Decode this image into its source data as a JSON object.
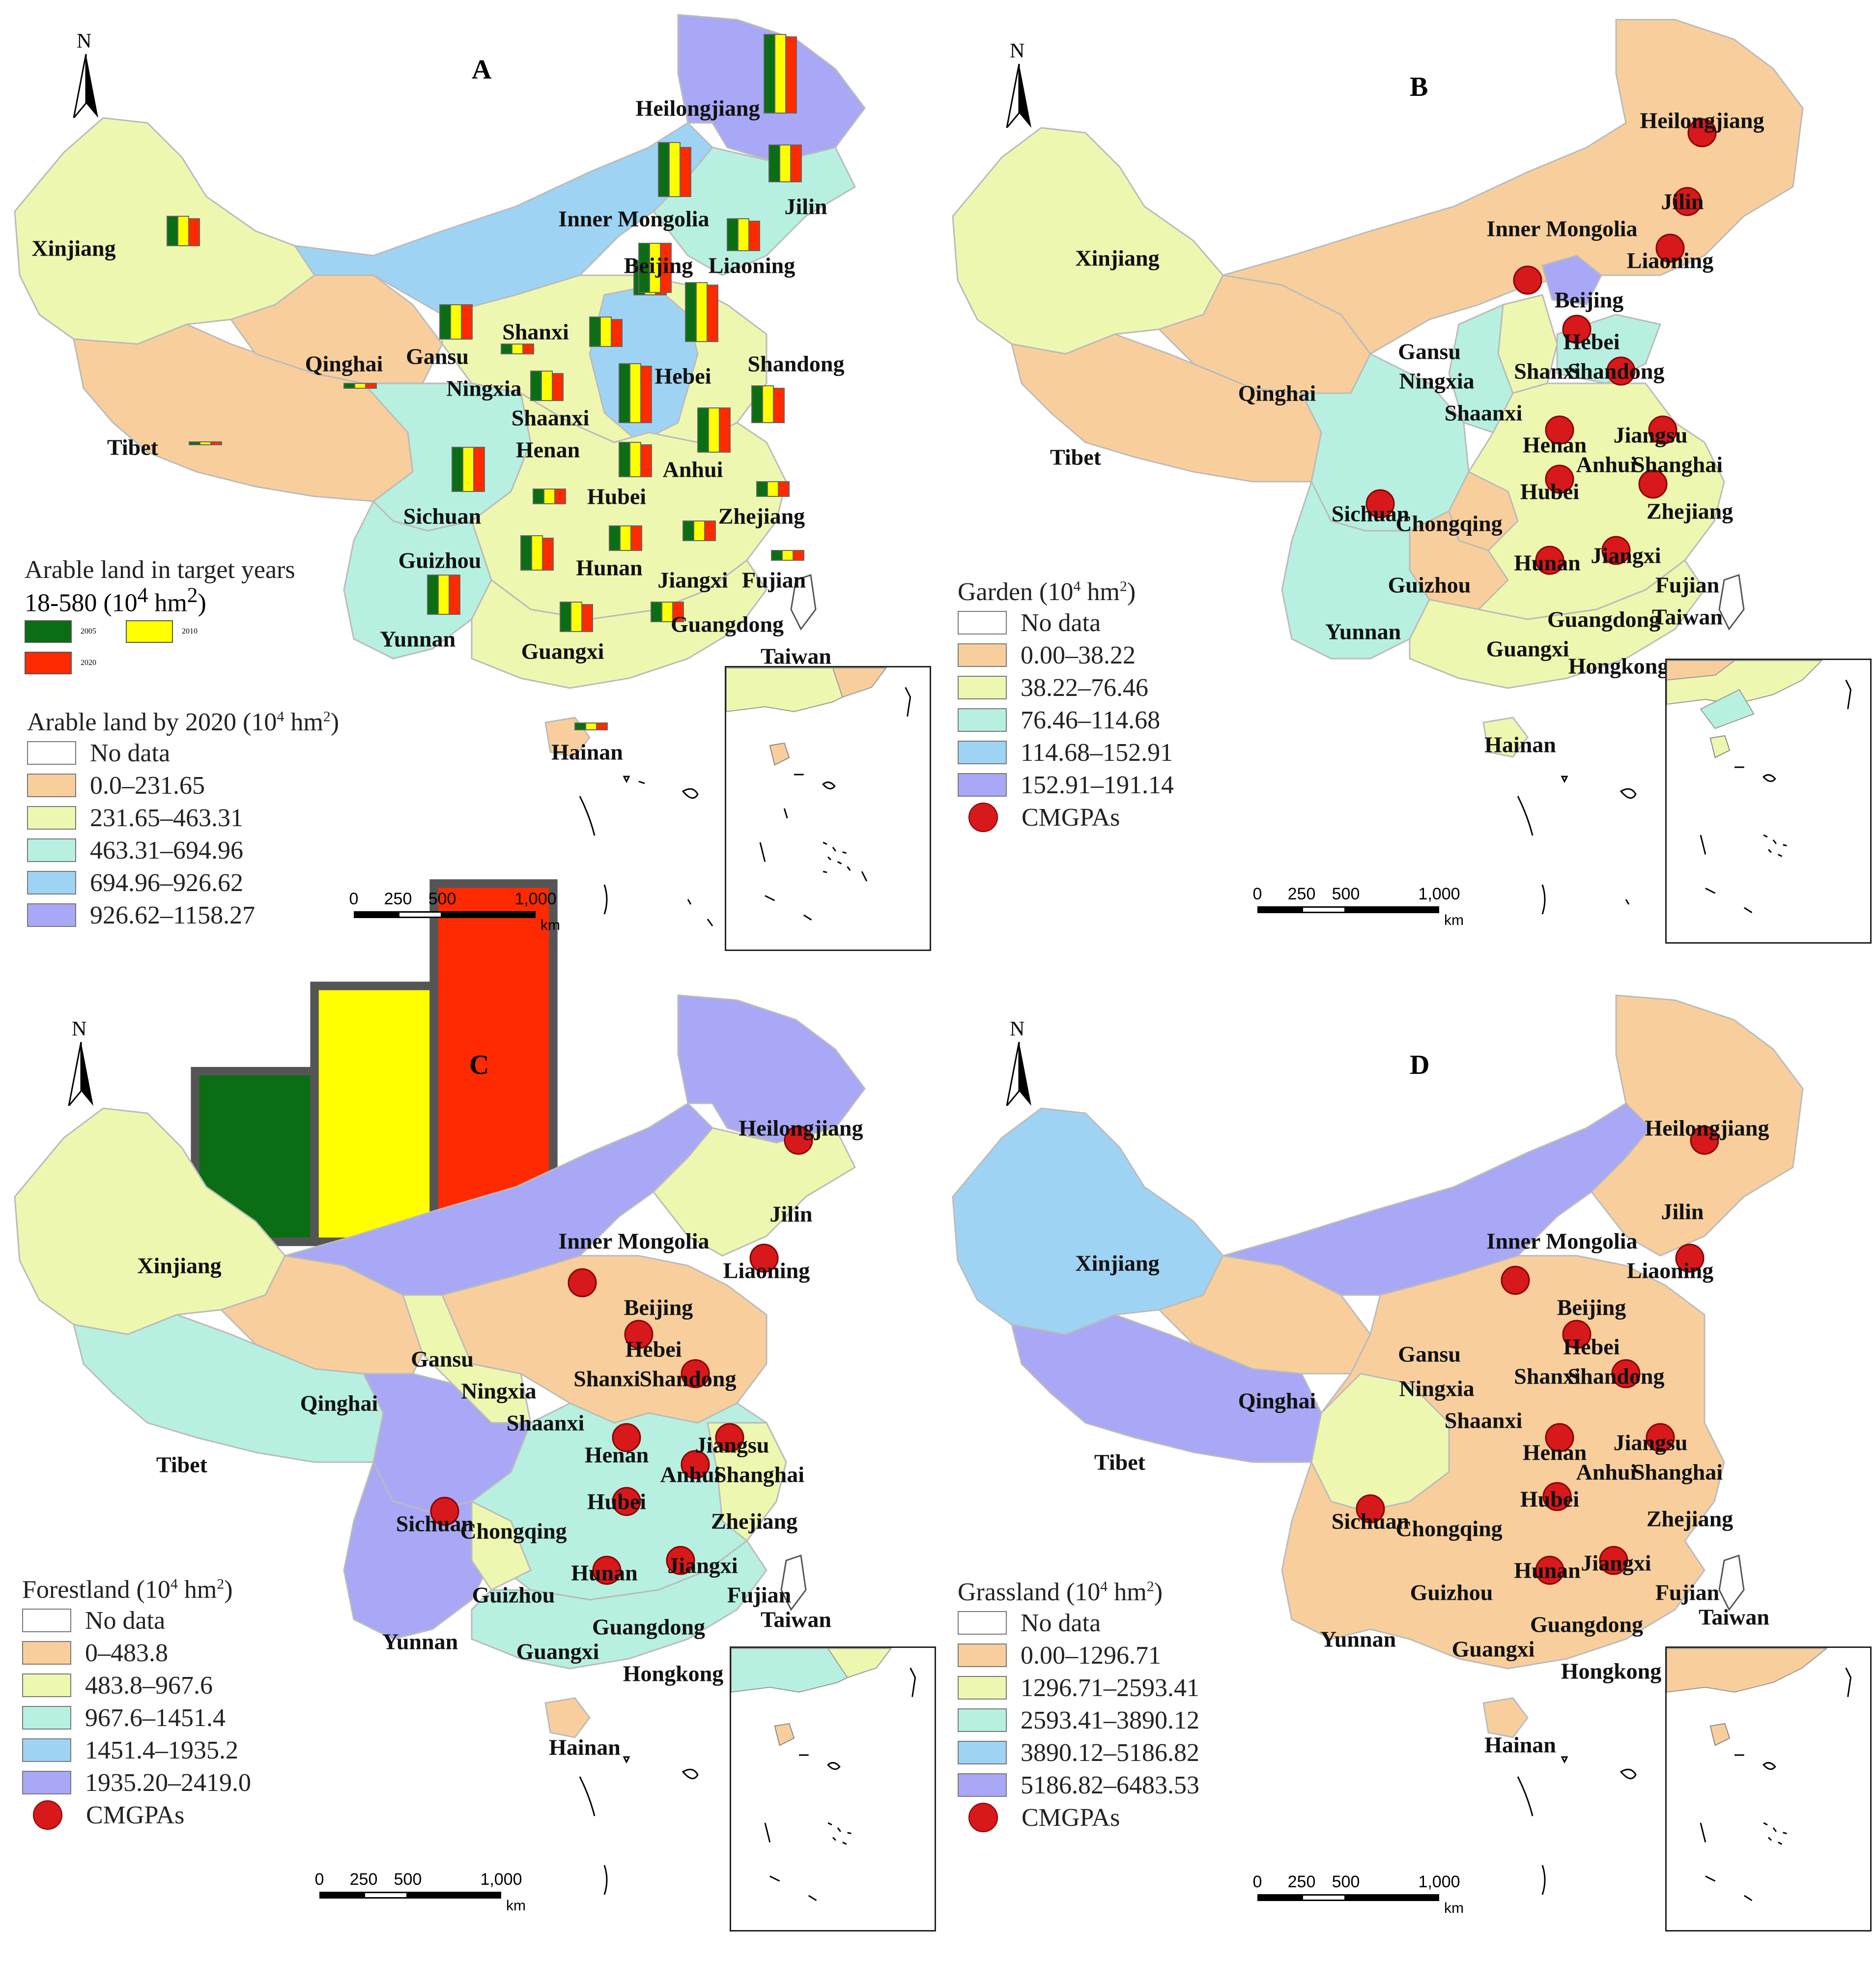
{
  "panels": [
    {
      "letter": "A",
      "north": "N",
      "legend_title": "Arable land by 2020 (10",
      "legend_title_sup": "4",
      "legend_title_end": " hm",
      "legend_title_sup2": "2",
      "legend_title_close": ")",
      "bars_title": "Arable land in target years",
      "bars_range": "18-580 (10",
      "bars_range_sup": "4",
      "bars_range_end": " hm",
      "bars_range_sup2": "2",
      "bars_range_close": ")",
      "bars_series": [
        {
          "label": "2005",
          "color": "#0b6e14"
        },
        {
          "label": "2010",
          "color": "#ffff00"
        },
        {
          "label": "2020",
          "color": "#ff2a00"
        }
      ],
      "classes": [
        {
          "label": "No data",
          "color": "#ffffff"
        },
        {
          "label": "0.0–231.65",
          "color": "#f8cf9c"
        },
        {
          "label": "231.65–463.31",
          "color": "#eef7b0"
        },
        {
          "label": "463.31–694.96",
          "color": "#b7f0e0"
        },
        {
          "label": "694.96–926.62",
          "color": "#9fd3f4"
        },
        {
          "label": "926.62–1158.27",
          "color": "#a8a8f6"
        }
      ],
      "labels": [
        "Heilongjiang",
        "Jilin",
        "Inner Mongolia",
        "Liaoning",
        "Beijing",
        "Xinjiang",
        "Shanxi",
        "Shandong",
        "Gansu",
        "Qinghai",
        "Ningxia",
        "Hebei",
        "Shaanxi",
        "Tibet",
        "Henan",
        "Anhui",
        "Sichuan",
        "Hubei",
        "Zhejiang",
        "Guizhou",
        "Hunan",
        "Jiangxi",
        "Fujian",
        "Yunnan",
        "Guangxi",
        "Guangdong",
        "Taiwan",
        "Hainan"
      ],
      "has_dots": false
    },
    {
      "letter": "B",
      "north": "N",
      "legend_title": "Garden (10",
      "legend_title_sup": "4",
      "legend_title_end": " hm",
      "legend_title_sup2": "2",
      "legend_title_close": ")",
      "classes": [
        {
          "label": "No data",
          "color": "#ffffff"
        },
        {
          "label": "0.00–38.22",
          "color": "#f8cf9c"
        },
        {
          "label": "38.22–76.46",
          "color": "#eef7b0"
        },
        {
          "label": "76.46–114.68",
          "color": "#b7f0e0"
        },
        {
          "label": "114.68–152.91",
          "color": "#9fd3f4"
        },
        {
          "label": "152.91–191.14",
          "color": "#a8a8f6"
        }
      ],
      "dot_label": "CMGPAs",
      "labels": [
        "Heilongjiang",
        "Jilin",
        "Inner Mongolia",
        "Liaoning",
        "Xinjiang",
        "Beijing",
        "Hebei",
        "Gansu",
        "Shanxi",
        "Shandong",
        "Qinghai",
        "Ningxia",
        "Shaanxi",
        "Henan",
        "Jiangsu",
        "Tibet",
        "Anhui",
        "Shanghai",
        "Hubei",
        "Sichuan",
        "Chongqing",
        "Zhejiang",
        "Hunan",
        "Jiangxi",
        "Guizhou",
        "Fujian",
        "Yunnan",
        "Guangdong",
        "Taiwan",
        "Guangxi",
        "Hongkong",
        "Hainan"
      ],
      "has_dots": true
    },
    {
      "letter": "C",
      "north": "N",
      "legend_title": "Forestland (10",
      "legend_title_sup": "4",
      "legend_title_end": " hm",
      "legend_title_sup2": "2",
      "legend_title_close": ")",
      "classes": [
        {
          "label": "No data",
          "color": "#ffffff"
        },
        {
          "label": "0–483.8",
          "color": "#f8cf9c"
        },
        {
          "label": "483.8–967.6",
          "color": "#eef7b0"
        },
        {
          "label": "967.6–1451.4",
          "color": "#b7f0e0"
        },
        {
          "label": "1451.4–1935.2",
          "color": "#9fd3f4"
        },
        {
          "label": "1935.20–2419.0",
          "color": "#a8a8f6"
        }
      ],
      "dot_label": "CMGPAs",
      "labels": [
        "Heilongjiang",
        "Jilin",
        "Inner Mongolia",
        "Liaoning",
        "Xinjiang",
        "Beijing",
        "Hebei",
        "Gansu",
        "Shanxi",
        "Shandong",
        "Qinghai",
        "Ningxia",
        "Shaanxi",
        "Henan",
        "Jiangsu",
        "Tibet",
        "Anhui",
        "Shanghai",
        "Hubei",
        "Sichuan",
        "Chongqing",
        "Zhejiang",
        "Hunan",
        "Jiangxi",
        "Guizhou",
        "Fujian",
        "Yunnan",
        "Guangdong",
        "Taiwan",
        "Guangxi",
        "Hongkong",
        "Hainan"
      ],
      "has_dots": true
    },
    {
      "letter": "D",
      "north": "N",
      "legend_title": "Grassland (10",
      "legend_title_sup": "4",
      "legend_title_end": " hm",
      "legend_title_sup2": "2",
      "legend_title_close": ")",
      "classes": [
        {
          "label": "No data",
          "color": "#ffffff"
        },
        {
          "label": "0.00–1296.71",
          "color": "#f8cf9c"
        },
        {
          "label": "1296.71–2593.41",
          "color": "#eef7b0"
        },
        {
          "label": "2593.41–3890.12",
          "color": "#b7f0e0"
        },
        {
          "label": "3890.12–5186.82",
          "color": "#9fd3f4"
        },
        {
          "label": "5186.82–6483.53",
          "color": "#a8a8f6"
        }
      ],
      "dot_label": "CMGPAs",
      "labels": [
        "Heilongjiang",
        "Jilin",
        "Inner Mongolia",
        "Liaoning",
        "Xinjiang",
        "Beijing",
        "Hebei",
        "Gansu",
        "Shanxi",
        "Shandong",
        "Qinghai",
        "Ningxia",
        "Shaanxi",
        "Henan",
        "Jiangsu",
        "Tibet",
        "Anhui",
        "Shanghai",
        "Hubei",
        "Sichuan",
        "Chongqing",
        "Zhejiang",
        "Hunan",
        "Jiangxi",
        "Guizhou",
        "Fujian",
        "Yunnan",
        "Guangdong",
        "Taiwan",
        "Guangxi",
        "Hongkong",
        "Hainan"
      ],
      "has_dots": true
    }
  ],
  "scale": {
    "ticks": [
      "0",
      "250",
      "500",
      "1,000"
    ],
    "unit": "km"
  }
}
